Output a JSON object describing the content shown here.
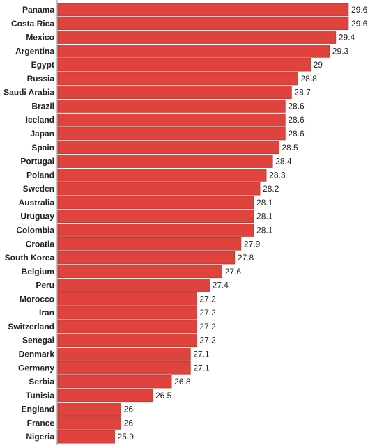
{
  "chart_data": {
    "type": "bar",
    "orientation": "horizontal",
    "categories": [
      "Panama",
      "Costa Rica",
      "Mexico",
      "Argentina",
      "Egypt",
      "Russia",
      "Saudi Arabia",
      "Brazil",
      "Iceland",
      "Japan",
      "Spain",
      "Portugal",
      "Poland",
      "Sweden",
      "Australia",
      "Uruguay",
      "Colombia",
      "Croatia",
      "South Korea",
      "Belgium",
      "Peru",
      "Morocco",
      "Iran",
      "Switzerland",
      "Senegal",
      "Denmark",
      "Germany",
      "Serbia",
      "Tunisia",
      "England",
      "France",
      "Nigeria"
    ],
    "values": [
      29.6,
      29.6,
      29.4,
      29.3,
      29,
      28.8,
      28.7,
      28.6,
      28.6,
      28.6,
      28.5,
      28.4,
      28.3,
      28.2,
      28.1,
      28.1,
      28.1,
      27.9,
      27.8,
      27.6,
      27.4,
      27.2,
      27.2,
      27.2,
      27.2,
      27.1,
      27.1,
      26.8,
      26.5,
      26,
      26,
      25.9
    ],
    "value_labels": [
      "29.6",
      "29.6",
      "29.4",
      "29.3",
      "29",
      "28.8",
      "28.7",
      "28.6",
      "28.6",
      "28.6",
      "28.5",
      "28.4",
      "28.3",
      "28.2",
      "28.1",
      "28.1",
      "28.1",
      "27.9",
      "27.8",
      "27.6",
      "27.4",
      "27.2",
      "27.2",
      "27.2",
      "27.2",
      "27.1",
      "27.1",
      "26.8",
      "26.5",
      "26",
      "26",
      "25.9"
    ],
    "title": "",
    "xlabel": "",
    "ylabel": "",
    "xlim": [
      0,
      29.6
    ],
    "grid": false,
    "legend": "none",
    "bar_color": "#e0433d",
    "bar_outline": "#b03028",
    "divider_color": "#888888"
  }
}
